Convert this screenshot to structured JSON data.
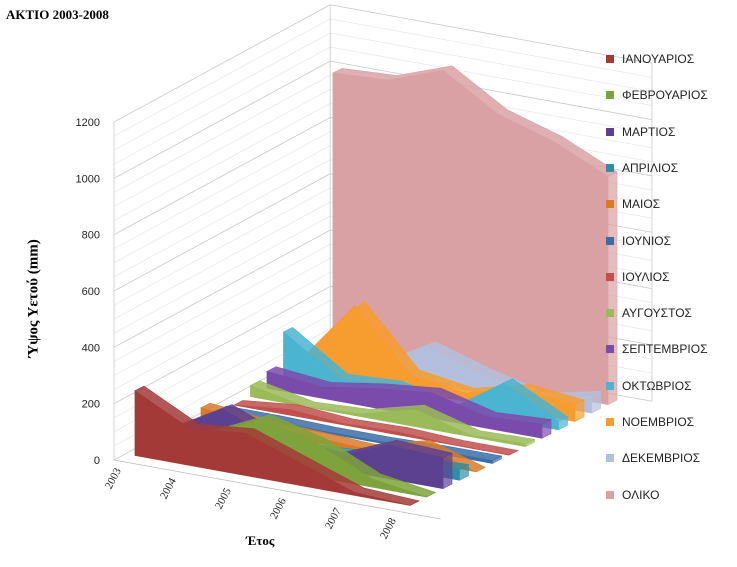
{
  "chart_data": {
    "type": "area",
    "title": "ΑΚΤΙΟ 2003-2008",
    "xlabel": "Έτος",
    "ylabel": "Ύψος Υετού (mm)",
    "x": [
      "2003",
      "2004",
      "2005",
      "2006",
      "2007",
      "2008"
    ],
    "yticks": [
      "0",
      "200",
      "400",
      "600",
      "800",
      "1000",
      "1200"
    ],
    "ylim": [
      0,
      1200
    ],
    "legend_position": "right",
    "grid": true,
    "series": [
      {
        "name": "ΙΑΝΟΥΑΡΙΟΣ",
        "color": "#a33a38",
        "values": [
          230,
          130,
          150,
          80,
          10,
          0
        ]
      },
      {
        "name": "ΦΕΒΡΟΥΑΡΙΟΣ",
        "color": "#7ea33c",
        "values": [
          20,
          80,
          170,
          120,
          30,
          0
        ]
      },
      {
        "name": "ΜΑΡΤΙΟΣ",
        "color": "#5c4191",
        "values": [
          30,
          140,
          60,
          40,
          120,
          110
        ]
      },
      {
        "name": "ΑΠΡΙΛΙΟΣ",
        "color": "#2f8ea3",
        "values": [
          20,
          40,
          10,
          20,
          30,
          40
        ]
      },
      {
        "name": "ΜΑΙΟΣ",
        "color": "#d97a2b",
        "values": [
          50,
          30,
          20,
          10,
          60,
          0
        ]
      },
      {
        "name": "ΙΟΥΝΙΟΣ",
        "color": "#3b6ea8",
        "values": [
          10,
          10,
          5,
          5,
          10,
          10
        ]
      },
      {
        "name": "ΙΟΥΛΙΟΣ",
        "color": "#c0504d",
        "values": [
          0,
          20,
          5,
          10,
          0,
          0
        ]
      },
      {
        "name": "ΑΥΓΟΥΣΤΟΣ",
        "color": "#9bbb59",
        "values": [
          40,
          0,
          10,
          60,
          5,
          10
        ]
      },
      {
        "name": "ΣΕΠΤΕΜΒΡΙΟΣ",
        "color": "#7b4bab",
        "values": [
          60,
          40,
          70,
          90,
          40,
          50
        ]
      },
      {
        "name": "ΟΚΤΩΒΡΙΟΣ",
        "color": "#4bb4d0",
        "values": [
          170,
          40,
          50,
          0,
          130,
          30
        ]
      },
      {
        "name": "ΝΟΕΜΒΡΙΟΣ",
        "color": "#f79c2e",
        "values": [
          40,
          270,
          60,
          30,
          80,
          60
        ]
      },
      {
        "name": "ΔΕΚΕΜΒΡΙΟΣ",
        "color": "#b3bfdc",
        "values": [
          60,
          20,
          130,
          70,
          20,
          60
        ]
      },
      {
        "name": "ΟΛΙΚΟ",
        "color": "#d9a1a4",
        "values": [
          1000,
          1010,
          1080,
          960,
          900,
          810
        ]
      }
    ]
  }
}
